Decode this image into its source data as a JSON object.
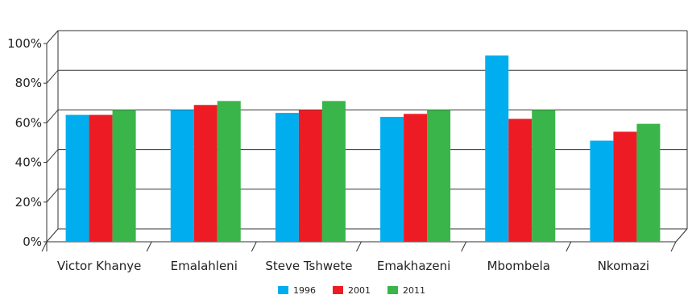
{
  "chart_data": {
    "type": "bar",
    "title": "",
    "xlabel": "",
    "ylabel": "",
    "categories": [
      "Victor Khanye",
      "Emalahleni",
      "Steve Tshwete",
      "Emakhazeni",
      "Mbombela",
      "Nkomazi"
    ],
    "series": [
      {
        "name": "1996",
        "color": "#00aeef",
        "values": [
          64,
          66.5,
          65,
          63,
          94,
          51
        ]
      },
      {
        "name": "2001",
        "color": "#ed1c24",
        "values": [
          64,
          69,
          66.5,
          64.5,
          62,
          55.5
        ]
      },
      {
        "name": "2011",
        "color": "#39b54a",
        "values": [
          66.5,
          71,
          71,
          66.5,
          66.5,
          59.5
        ]
      }
    ],
    "ylim": [
      0,
      100
    ],
    "yticks": [
      "0%",
      "20%",
      "40%",
      "60%",
      "80%",
      "100%"
    ],
    "grid": true,
    "legend_position": "bottom-center"
  }
}
